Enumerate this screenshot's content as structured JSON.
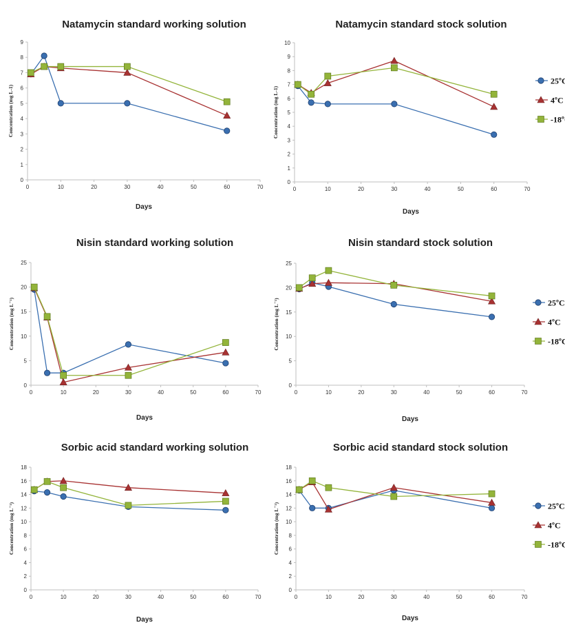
{
  "colors": {
    "series": [
      "#3a6fb0",
      "#a83232",
      "#93b43a"
    ],
    "axis": "#bfbfbf",
    "text": "#333333"
  },
  "legend_right_labels": [
    "25ºC",
    "4ºC",
    "-18ºC"
  ],
  "chart_data": [
    {
      "type": "line",
      "title": "Natamycin standard  working solution",
      "xlabel": "Days",
      "ylabel": "Concentration  (mg L-1)",
      "xlim": [
        0,
        70
      ],
      "ylim": [
        0,
        9
      ],
      "xticks": [
        0,
        10,
        20,
        30,
        40,
        50,
        60,
        70
      ],
      "yticks": [
        0,
        1,
        2,
        3,
        4,
        5,
        6,
        7,
        8,
        9
      ],
      "x": [
        1,
        5,
        10,
        30,
        60
      ],
      "series": [
        {
          "name": "25ºC",
          "values": [
            6.9,
            8.1,
            5.0,
            5.0,
            3.2
          ]
        },
        {
          "name": "4ºC",
          "values": [
            6.9,
            7.4,
            7.3,
            7.0,
            4.2
          ]
        },
        {
          "name": "-18ºC",
          "values": [
            7.0,
            7.4,
            7.4,
            7.4,
            5.1
          ]
        }
      ]
    },
    {
      "type": "line",
      "title": "Natamycin standard  stock solution",
      "xlabel": "Days",
      "ylabel": "Concentration  (mg L-1)",
      "xlim": [
        0,
        70
      ],
      "ylim": [
        0,
        10
      ],
      "xticks": [
        0,
        10,
        20,
        30,
        40,
        50,
        60,
        70
      ],
      "yticks": [
        0,
        1,
        2,
        3,
        4,
        5,
        6,
        7,
        8,
        9,
        10
      ],
      "x": [
        1,
        5,
        10,
        30,
        60
      ],
      "series": [
        {
          "name": "25ºC",
          "values": [
            6.9,
            5.7,
            5.6,
            5.6,
            3.4
          ]
        },
        {
          "name": "4ºC",
          "values": [
            7.0,
            6.4,
            7.1,
            8.7,
            5.4
          ]
        },
        {
          "name": "-18ºC",
          "values": [
            7.0,
            6.3,
            7.6,
            8.2,
            6.3
          ]
        }
      ],
      "legend": "right"
    },
    {
      "type": "line",
      "title": "Nisin standard  working solution",
      "xlabel": "Days",
      "ylabel": "Concentration  (mg L⁻¹)",
      "xlim": [
        0,
        70
      ],
      "ylim": [
        0,
        25
      ],
      "xticks": [
        0,
        10,
        20,
        30,
        40,
        50,
        60,
        70
      ],
      "yticks": [
        0,
        5,
        10,
        15,
        20,
        25
      ],
      "x": [
        1,
        5,
        10,
        30,
        60
      ],
      "series": [
        {
          "name": "25ºC",
          "values": [
            19.5,
            2.5,
            2.5,
            8.3,
            4.5
          ]
        },
        {
          "name": "4ºC",
          "values": [
            19.8,
            13.8,
            0.6,
            3.6,
            6.7
          ]
        },
        {
          "name": "-18ºC",
          "values": [
            20.0,
            14.0,
            2.0,
            2.0,
            8.7
          ]
        }
      ]
    },
    {
      "type": "line",
      "title": "Nisin standard  stock solution",
      "xlabel": "Days",
      "ylabel": "Concentration  (mg L⁻¹)",
      "xlim": [
        0,
        70
      ],
      "ylim": [
        0,
        25
      ],
      "xticks": [
        0,
        10,
        20,
        30,
        40,
        50,
        60,
        70
      ],
      "yticks": [
        0,
        5,
        10,
        15,
        20,
        25
      ],
      "x": [
        1,
        5,
        10,
        30,
        60
      ],
      "series": [
        {
          "name": "25ºC",
          "values": [
            19.7,
            21.0,
            20.2,
            16.6,
            14.0
          ]
        },
        {
          "name": "4ºC",
          "values": [
            19.8,
            20.8,
            21.0,
            20.8,
            17.2
          ]
        },
        {
          "name": "-18ºC",
          "values": [
            20.0,
            22.0,
            23.5,
            20.5,
            18.3
          ]
        }
      ],
      "legend": "right"
    },
    {
      "type": "line",
      "title": "Sorbic acid standard  working solution",
      "xlabel": "Days",
      "ylabel": "Concentration  (mg L⁻¹)",
      "xlim": [
        0,
        70
      ],
      "ylim": [
        0,
        18
      ],
      "xticks": [
        0,
        10,
        20,
        30,
        40,
        50,
        60,
        70
      ],
      "yticks": [
        0,
        2,
        4,
        6,
        8,
        10,
        12,
        14,
        16,
        18
      ],
      "x": [
        1,
        5,
        10,
        30,
        60
      ],
      "series": [
        {
          "name": "25ºC",
          "values": [
            14.5,
            14.3,
            13.7,
            12.2,
            11.7
          ]
        },
        {
          "name": "4ºC",
          "values": [
            14.7,
            15.9,
            16.0,
            15.0,
            14.2
          ]
        },
        {
          "name": "-18ºC",
          "values": [
            14.7,
            15.9,
            15.0,
            12.4,
            13.0
          ]
        }
      ]
    },
    {
      "type": "line",
      "title": "Sorbic acid standard  stock solution",
      "xlabel": "Days",
      "ylabel": "Concentration  (mg L⁻¹)",
      "xlim": [
        0,
        70
      ],
      "ylim": [
        0,
        18
      ],
      "xticks": [
        0,
        10,
        20,
        30,
        40,
        50,
        60,
        70
      ],
      "yticks": [
        0,
        2,
        4,
        6,
        8,
        10,
        12,
        14,
        16,
        18
      ],
      "x": [
        1,
        5,
        10,
        30,
        60
      ],
      "series": [
        {
          "name": "25ºC",
          "values": [
            14.6,
            12.0,
            12.0,
            14.6,
            12.0
          ]
        },
        {
          "name": "4ºC",
          "values": [
            14.7,
            15.8,
            11.8,
            15.0,
            12.8
          ]
        },
        {
          "name": "-18ºC",
          "values": [
            14.7,
            16.0,
            15.0,
            13.7,
            14.1
          ]
        }
      ],
      "legend": "right"
    }
  ]
}
